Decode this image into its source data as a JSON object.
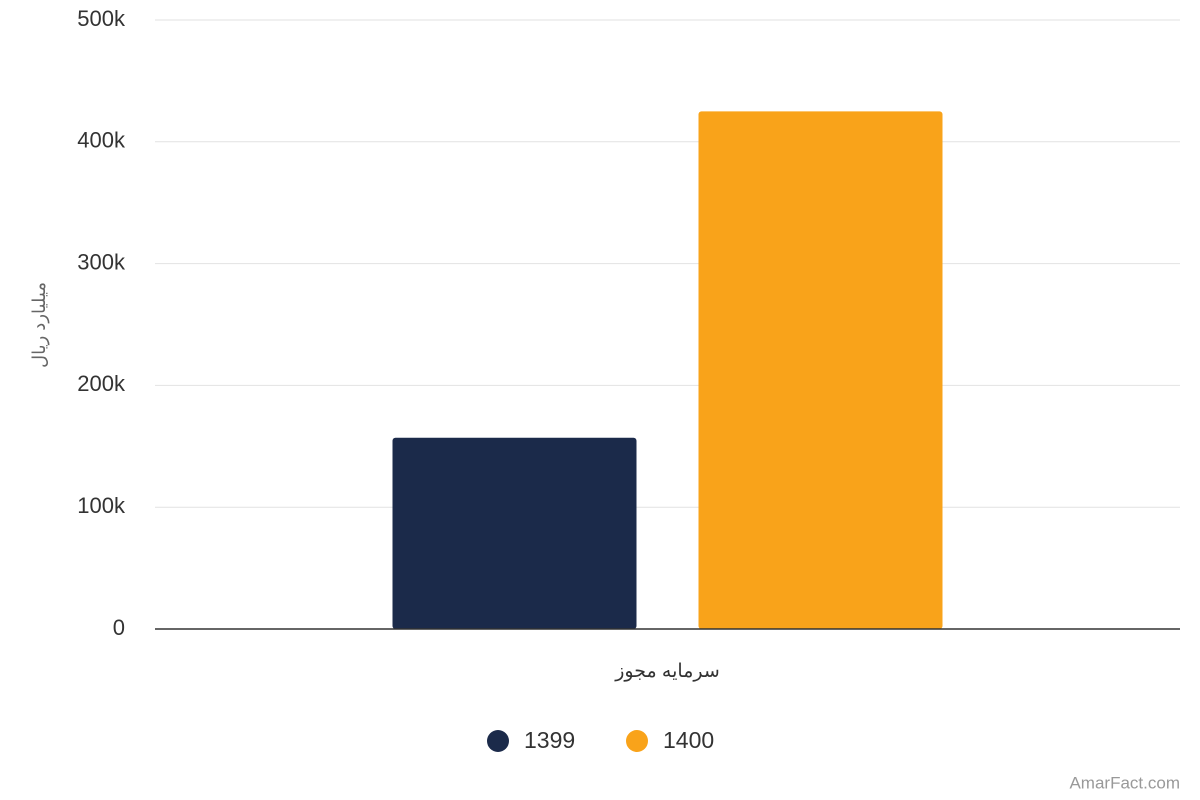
{
  "chart_data": {
    "type": "bar",
    "y_label": "میلیارد ریال",
    "categories": [
      "سرمایه مجوز"
    ],
    "series": [
      {
        "name": "1399",
        "color": "#1b2a4a",
        "values": [
          157000
        ]
      },
      {
        "name": "1400",
        "color": "#f9a31a",
        "values": [
          425000
        ]
      }
    ],
    "ylim": [
      0,
      500000
    ],
    "yticks": [
      0,
      {
        "value": 100000,
        "label": "100k"
      },
      {
        "value": 200000,
        "label": "200k"
      },
      {
        "value": 300000,
        "label": "300k"
      },
      {
        "value": 400000,
        "label": "400k"
      },
      {
        "value": 500000,
        "label": "500k"
      }
    ],
    "grid": true,
    "legend": "bottom",
    "credit": "AmarFact.com"
  }
}
